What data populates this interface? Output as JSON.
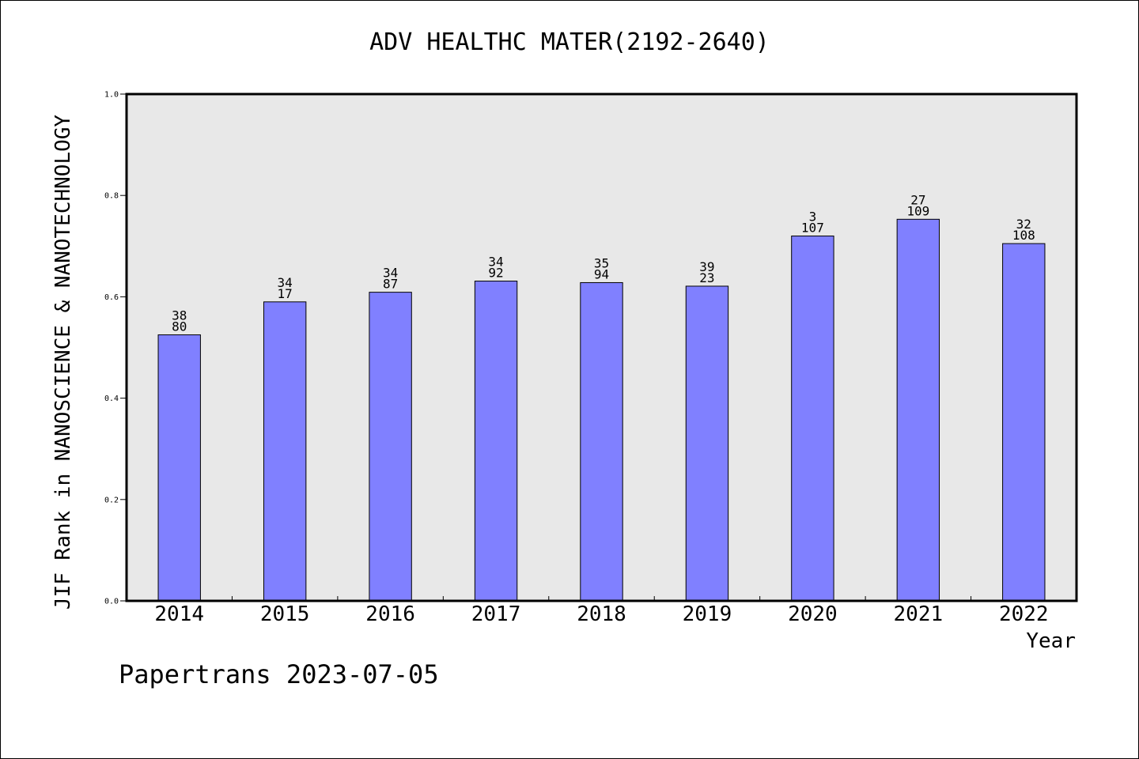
{
  "chart_data": {
    "type": "bar",
    "title": "ADV HEALTHC MATER(2192-2640)",
    "xlabel": "Year",
    "ylabel": "JIF Rank in NANOSCIENCE & NANOTECHNOLOGY",
    "categories": [
      "2014",
      "2015",
      "2016",
      "2017",
      "2018",
      "2019",
      "2020",
      "2021",
      "2022"
    ],
    "values": [
      0.525,
      0.59,
      0.609,
      0.631,
      0.628,
      0.621,
      0.72,
      0.753,
      0.705
    ],
    "bar_labels_top": [
      "38",
      "34",
      "34",
      "34",
      "35",
      "39",
      "3",
      "27",
      "32"
    ],
    "bar_labels_bottom": [
      "80",
      "17",
      "87",
      "92",
      "94",
      "23",
      "107",
      "109",
      "108"
    ],
    "ylim": [
      0,
      1.0
    ],
    "yticks": [
      "0.0",
      "0.2",
      "0.4",
      "0.6",
      "0.8",
      "1.0"
    ],
    "ytick_values": [
      0.0,
      0.2,
      0.4,
      0.6,
      0.8,
      1.0
    ],
    "grid": false,
    "colors": {
      "bar": "#8080ff",
      "plot_bg": "#e8e8e8"
    }
  },
  "footer": "Papertrans 2023-07-05"
}
